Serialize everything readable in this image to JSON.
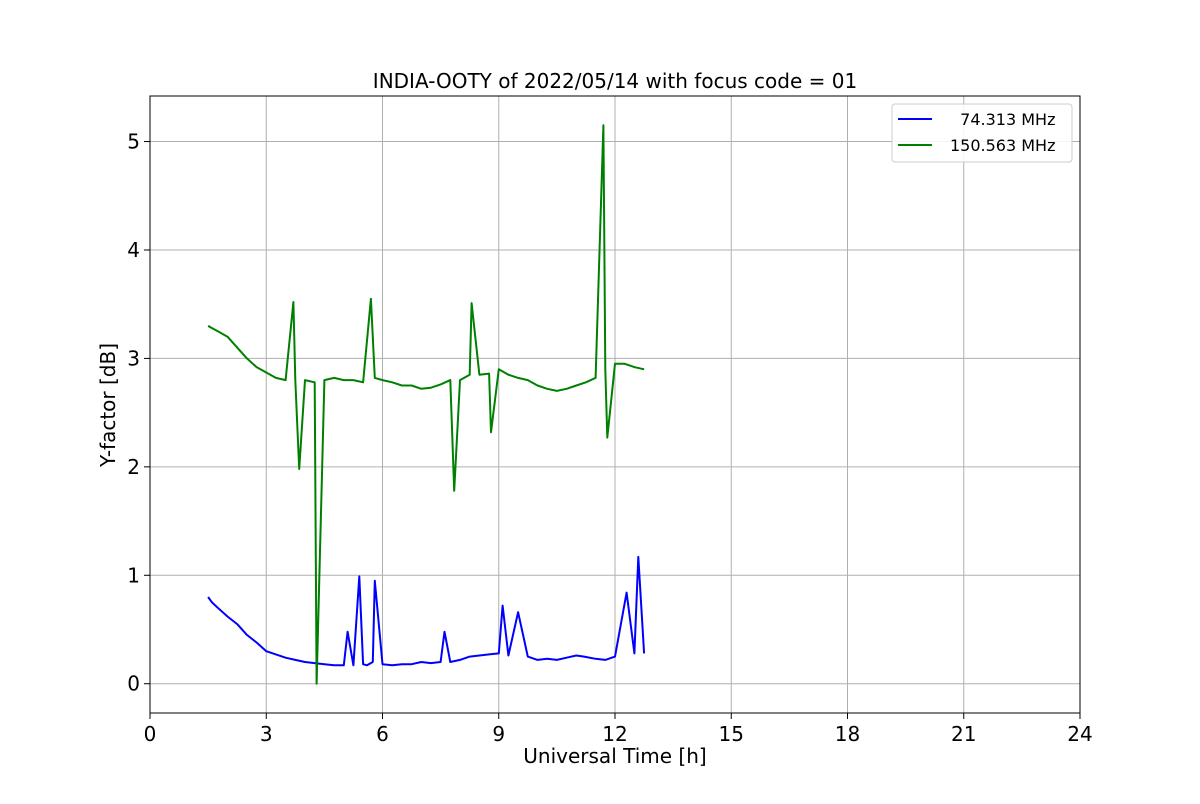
{
  "chart_data": {
    "type": "line",
    "title": "INDIA-OOTY of 2022/05/14 with focus code = 01",
    "xlabel": "Universal Time [h]",
    "ylabel": "Y-factor [dB]",
    "xlim": [
      0,
      24
    ],
    "ylim": [
      -0.27,
      5.42
    ],
    "xticks": [
      0,
      3,
      6,
      9,
      12,
      15,
      18,
      21,
      24
    ],
    "yticks": [
      0,
      1,
      2,
      3,
      4,
      5
    ],
    "grid": true,
    "legend_position": "top-right",
    "series": [
      {
        "name": "  74.313 MHz",
        "color": "#0000ff",
        "x": [
          1.5,
          1.6,
          1.75,
          2.0,
          2.25,
          2.5,
          2.75,
          3.0,
          3.25,
          3.5,
          3.75,
          4.0,
          4.25,
          4.5,
          4.75,
          5.0,
          5.1,
          5.25,
          5.4,
          5.5,
          5.6,
          5.75,
          5.8,
          6.0,
          6.25,
          6.5,
          6.75,
          7.0,
          7.25,
          7.5,
          7.6,
          7.75,
          8.0,
          8.25,
          8.5,
          8.75,
          9.0,
          9.1,
          9.25,
          9.5,
          9.75,
          10.0,
          10.25,
          10.5,
          10.75,
          11.0,
          11.2,
          11.5,
          11.75,
          12.0,
          12.3,
          12.5,
          12.6,
          12.75
        ],
        "y": [
          0.8,
          0.75,
          0.7,
          0.62,
          0.55,
          0.45,
          0.38,
          0.3,
          0.27,
          0.24,
          0.22,
          0.2,
          0.19,
          0.18,
          0.17,
          0.17,
          0.48,
          0.17,
          0.99,
          0.18,
          0.17,
          0.2,
          0.95,
          0.18,
          0.17,
          0.18,
          0.18,
          0.2,
          0.19,
          0.2,
          0.48,
          0.2,
          0.22,
          0.25,
          0.26,
          0.27,
          0.28,
          0.72,
          0.26,
          0.66,
          0.25,
          0.22,
          0.23,
          0.22,
          0.24,
          0.26,
          0.25,
          0.23,
          0.22,
          0.25,
          0.84,
          0.28,
          1.17,
          0.28
        ]
      },
      {
        "name": "150.563 MHz",
        "color": "#008000",
        "x": [
          1.5,
          1.6,
          1.75,
          2.0,
          2.25,
          2.5,
          2.75,
          3.0,
          3.25,
          3.5,
          3.7,
          3.75,
          3.85,
          4.0,
          4.25,
          4.3,
          4.5,
          4.75,
          5.0,
          5.25,
          5.5,
          5.7,
          5.8,
          6.0,
          6.25,
          6.5,
          6.75,
          7.0,
          7.25,
          7.5,
          7.75,
          7.85,
          8.0,
          8.25,
          8.3,
          8.5,
          8.75,
          8.8,
          9.0,
          9.25,
          9.5,
          9.75,
          10.0,
          10.25,
          10.5,
          10.75,
          11.0,
          11.25,
          11.5,
          11.7,
          11.75,
          11.8,
          12.0,
          12.25,
          12.5,
          12.75
        ],
        "y": [
          3.3,
          3.28,
          3.25,
          3.2,
          3.1,
          3.0,
          2.92,
          2.87,
          2.82,
          2.8,
          3.52,
          2.8,
          1.98,
          2.8,
          2.78,
          0.0,
          2.8,
          2.82,
          2.8,
          2.8,
          2.78,
          3.55,
          2.82,
          2.8,
          2.78,
          2.75,
          2.75,
          2.72,
          2.73,
          2.76,
          2.8,
          1.78,
          2.8,
          2.85,
          3.51,
          2.85,
          2.86,
          2.32,
          2.9,
          2.85,
          2.82,
          2.8,
          2.75,
          2.72,
          2.7,
          2.72,
          2.75,
          2.78,
          2.82,
          5.15,
          2.9,
          2.27,
          2.95,
          2.95,
          2.92,
          2.9
        ]
      }
    ]
  }
}
